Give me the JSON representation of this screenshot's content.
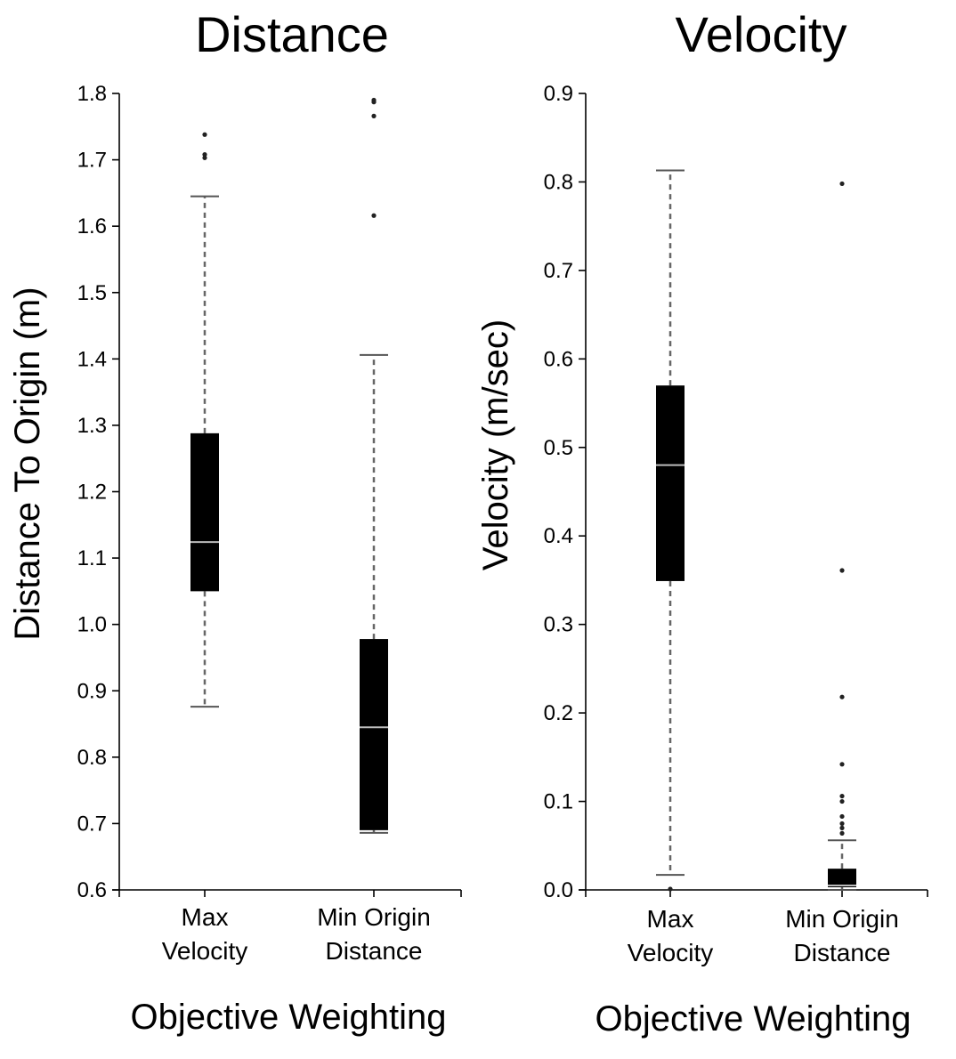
{
  "chart_data": [
    {
      "type": "box",
      "title": "Distance",
      "xlabel": "Objective Weighting",
      "ylabel": "Distance To Origin (m)",
      "ylim": [
        0.6,
        1.8
      ],
      "yticks": [
        0.6,
        0.7,
        0.8,
        0.9,
        1.0,
        1.1,
        1.2,
        1.3,
        1.4,
        1.5,
        1.6,
        1.7,
        1.8
      ],
      "ytick_labels": [
        "0.6",
        "0.7",
        "0.8",
        "0.9",
        "1.0",
        "1.1",
        "1.2",
        "1.3",
        "1.4",
        "1.5",
        "1.6",
        "1.7",
        "1.8"
      ],
      "categories": [
        {
          "line1": "Max",
          "line2": "Velocity"
        },
        {
          "line1": "Min Origin",
          "line2": "Distance"
        }
      ],
      "boxes": [
        {
          "whisker_low": 0.876,
          "q1": 1.05,
          "median": 1.124,
          "q3": 1.288,
          "whisker_high": 1.645,
          "outliers": [
            1.703,
            1.708,
            1.738
          ]
        },
        {
          "whisker_low": 0.686,
          "q1": 0.69,
          "median": 0.845,
          "q3": 0.978,
          "whisker_high": 1.406,
          "outliers": [
            1.616,
            1.766,
            1.787,
            1.79
          ]
        }
      ]
    },
    {
      "type": "box",
      "title": "Velocity",
      "xlabel": "Objective Weighting",
      "ylabel": "Velocity (m/sec)",
      "ylim": [
        0.0,
        0.9
      ],
      "yticks": [
        0.0,
        0.1,
        0.2,
        0.3,
        0.4,
        0.5,
        0.6,
        0.7,
        0.8,
        0.9
      ],
      "ytick_labels": [
        "0.0",
        "0.1",
        "0.2",
        "0.3",
        "0.4",
        "0.5",
        "0.6",
        "0.7",
        "0.8",
        "0.9"
      ],
      "categories": [
        {
          "line1": "Max",
          "line2": "Velocity"
        },
        {
          "line1": "Min Origin",
          "line2": "Distance"
        }
      ],
      "boxes": [
        {
          "whisker_low": 0.017,
          "q1": 0.349,
          "median": 0.48,
          "q3": 0.57,
          "whisker_high": 0.813,
          "outliers": [
            0.001
          ]
        },
        {
          "whisker_low": 0.0,
          "q1": 0.003,
          "median": 0.005,
          "q3": 0.024,
          "whisker_high": 0.056,
          "outliers": [
            0.064,
            0.07,
            0.075,
            0.083,
            0.1,
            0.106,
            0.142,
            0.218,
            0.361,
            0.798
          ]
        }
      ]
    }
  ]
}
